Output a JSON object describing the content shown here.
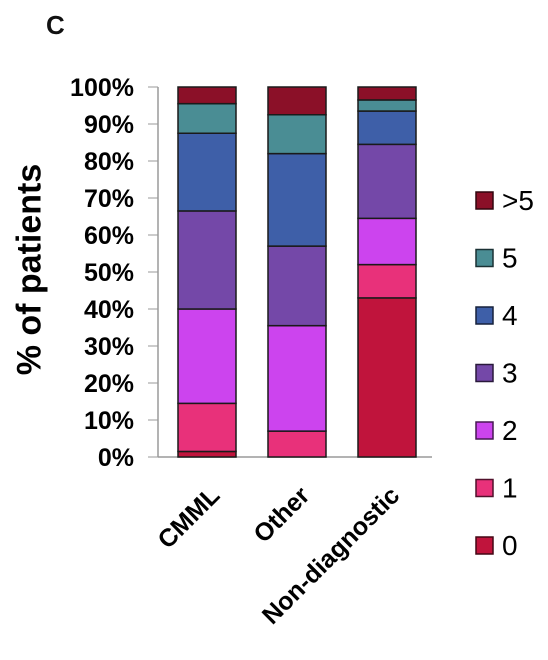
{
  "panel_label": "C",
  "chart_data": {
    "type": "bar",
    "stacked": true,
    "percent": true,
    "categories": [
      "CMML",
      "Other",
      "Non-diagnostic"
    ],
    "xlabel": "",
    "ylabel": "% of patients",
    "ylim": [
      0,
      100
    ],
    "yticks": [
      "0%",
      "10%",
      "20%",
      "30%",
      "40%",
      "50%",
      "60%",
      "70%",
      "80%",
      "90%",
      "100%"
    ],
    "grid": false,
    "legend_position": "right",
    "series": [
      {
        "name": "0",
        "color": "#c0143c",
        "values": [
          1.5,
          0,
          43
        ]
      },
      {
        "name": "1",
        "color": "#e8317a",
        "values": [
          13,
          7,
          9
        ]
      },
      {
        "name": "2",
        "color": "#cc44ee",
        "values": [
          25.5,
          28.5,
          12.5
        ]
      },
      {
        "name": "3",
        "color": "#7448a8",
        "values": [
          26.5,
          21.5,
          20
        ]
      },
      {
        "name": "4",
        "color": "#3e5fa8",
        "values": [
          21,
          25,
          9
        ]
      },
      {
        "name": "5",
        "color": "#4a8d94",
        "values": [
          8,
          10.5,
          3
        ]
      },
      {
        "name": ">5",
        "color": "#8b1028",
        "values": [
          4.5,
          7.5,
          3.5
        ]
      }
    ],
    "legend_order": [
      ">5",
      "5",
      "4",
      "3",
      "2",
      "1",
      "0"
    ]
  }
}
